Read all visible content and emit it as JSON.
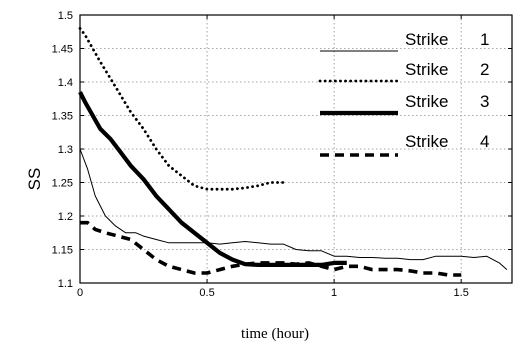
{
  "chart_data": {
    "type": "line",
    "xlabel": "time (hour)",
    "ylabel": "SS",
    "xlim": [
      0,
      1.7
    ],
    "ylim": [
      1.1,
      1.5
    ],
    "xticks": [
      {
        "value": 0,
        "label": "0"
      },
      {
        "value": 0.5,
        "label": "0.5"
      },
      {
        "value": 1.0,
        "label": "1"
      },
      {
        "value": 1.5,
        "label": "1.5"
      }
    ],
    "yticks": [
      {
        "value": 1.1,
        "label": "1.1"
      },
      {
        "value": 1.15,
        "label": "1.15"
      },
      {
        "value": 1.2,
        "label": "1.2"
      },
      {
        "value": 1.25,
        "label": "1.25"
      },
      {
        "value": 1.3,
        "label": "1.3"
      },
      {
        "value": 1.35,
        "label": "1.35"
      },
      {
        "value": 1.4,
        "label": "1.4"
      },
      {
        "value": 1.45,
        "label": "1.45"
      },
      {
        "value": 1.5,
        "label": "1.5"
      }
    ],
    "grid": true,
    "legend_position": "top-right",
    "series": [
      {
        "name": "Strike 1",
        "legend_word": "Strike",
        "legend_number": "1",
        "style": "thin-solid",
        "x": [
          0,
          0.03,
          0.06,
          0.1,
          0.14,
          0.18,
          0.22,
          0.25,
          0.3,
          0.35,
          0.4,
          0.45,
          0.5,
          0.55,
          0.6,
          0.65,
          0.7,
          0.75,
          0.8,
          0.85,
          0.9,
          0.95,
          1.0,
          1.05,
          1.1,
          1.15,
          1.2,
          1.25,
          1.3,
          1.35,
          1.4,
          1.45,
          1.5,
          1.55,
          1.6,
          1.65,
          1.68
        ],
        "y": [
          1.3,
          1.27,
          1.23,
          1.2,
          1.185,
          1.175,
          1.175,
          1.17,
          1.165,
          1.16,
          1.16,
          1.16,
          1.16,
          1.158,
          1.16,
          1.162,
          1.16,
          1.158,
          1.158,
          1.15,
          1.148,
          1.148,
          1.14,
          1.14,
          1.138,
          1.138,
          1.137,
          1.137,
          1.135,
          1.135,
          1.14,
          1.14,
          1.14,
          1.138,
          1.14,
          1.13,
          1.12
        ]
      },
      {
        "name": "Strike 2",
        "legend_word": "Strike",
        "legend_number": "2",
        "style": "dotted",
        "x": [
          0,
          0.02,
          0.05,
          0.08,
          0.12,
          0.16,
          0.2,
          0.25,
          0.3,
          0.35,
          0.4,
          0.45,
          0.5,
          0.55,
          0.6,
          0.65,
          0.7,
          0.75,
          0.8
        ],
        "y": [
          1.48,
          1.47,
          1.45,
          1.43,
          1.405,
          1.38,
          1.355,
          1.33,
          1.3,
          1.275,
          1.26,
          1.245,
          1.24,
          1.24,
          1.24,
          1.242,
          1.245,
          1.25,
          1.25
        ]
      },
      {
        "name": "Strike 3",
        "legend_word": "Strike",
        "legend_number": "3",
        "style": "thick-solid",
        "x": [
          0,
          0.02,
          0.05,
          0.08,
          0.12,
          0.16,
          0.2,
          0.25,
          0.3,
          0.35,
          0.4,
          0.45,
          0.5,
          0.55,
          0.6,
          0.65,
          0.7,
          0.75,
          0.8,
          0.85,
          0.9,
          0.95,
          1.0,
          1.05
        ],
        "y": [
          1.385,
          1.37,
          1.35,
          1.33,
          1.315,
          1.295,
          1.275,
          1.255,
          1.23,
          1.21,
          1.19,
          1.175,
          1.16,
          1.145,
          1.135,
          1.128,
          1.127,
          1.127,
          1.127,
          1.127,
          1.127,
          1.127,
          1.13,
          1.13
        ]
      },
      {
        "name": "Strike 4",
        "legend_word": "Strike",
        "legend_number": "4",
        "style": "dashed",
        "x": [
          0,
          0.03,
          0.06,
          0.1,
          0.15,
          0.2,
          0.25,
          0.3,
          0.35,
          0.4,
          0.45,
          0.5,
          0.55,
          0.6,
          0.65,
          0.7,
          0.75,
          0.8,
          0.85,
          0.9,
          0.95,
          1.0,
          1.05,
          1.1,
          1.15,
          1.2,
          1.25,
          1.3,
          1.35,
          1.4,
          1.45,
          1.5
        ],
        "y": [
          1.19,
          1.19,
          1.18,
          1.175,
          1.17,
          1.165,
          1.15,
          1.135,
          1.125,
          1.12,
          1.115,
          1.115,
          1.12,
          1.125,
          1.128,
          1.13,
          1.13,
          1.13,
          1.128,
          1.13,
          1.125,
          1.12,
          1.125,
          1.125,
          1.12,
          1.12,
          1.12,
          1.118,
          1.115,
          1.115,
          1.112,
          1.112
        ]
      }
    ]
  }
}
